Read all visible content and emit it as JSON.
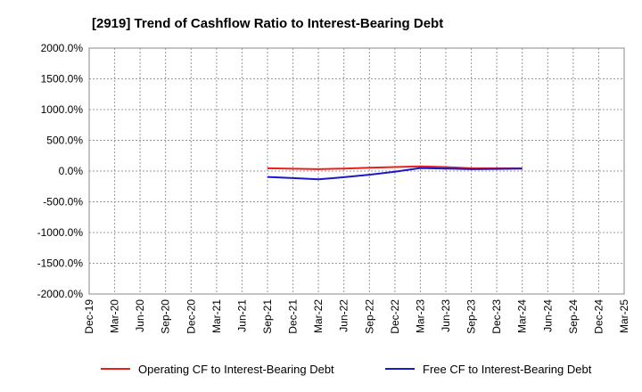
{
  "chart_data": {
    "type": "line",
    "title": "[2919]  Trend of Cashflow Ratio to Interest-Bearing Debt",
    "xlabel": "",
    "ylabel": "",
    "categories": [
      "Dec-19",
      "Mar-20",
      "Jun-20",
      "Sep-20",
      "Dec-20",
      "Mar-21",
      "Jun-21",
      "Sep-21",
      "Dec-21",
      "Mar-22",
      "Jun-22",
      "Sep-22",
      "Dec-22",
      "Mar-23",
      "Jun-23",
      "Sep-23",
      "Dec-23",
      "Mar-24",
      "Jun-24",
      "Sep-24",
      "Dec-24",
      "Mar-25"
    ],
    "y_ticks": [
      "2000.0%",
      "1500.0%",
      "1000.0%",
      "500.0%",
      "0.0%",
      "-500.0%",
      "-1000.0%",
      "-1500.0%",
      "-2000.0%"
    ],
    "ylim": [
      -2000,
      2000
    ],
    "grid": true,
    "legend_position": "bottom",
    "series": [
      {
        "name": "Operating CF to Interest-Bearing Debt",
        "color": "#e8201b",
        "values": [
          null,
          null,
          null,
          null,
          null,
          null,
          null,
          45,
          38,
          30,
          40,
          55,
          65,
          75,
          65,
          45,
          45,
          45,
          null,
          null,
          null,
          null
        ]
      },
      {
        "name": "Free CF to Interest-Bearing Debt",
        "color": "#1a18c8",
        "values": [
          null,
          null,
          null,
          null,
          null,
          null,
          null,
          -95,
          -115,
          -135,
          -100,
          -60,
          -10,
          50,
          40,
          30,
          35,
          40,
          null,
          null,
          null,
          null
        ]
      }
    ]
  }
}
